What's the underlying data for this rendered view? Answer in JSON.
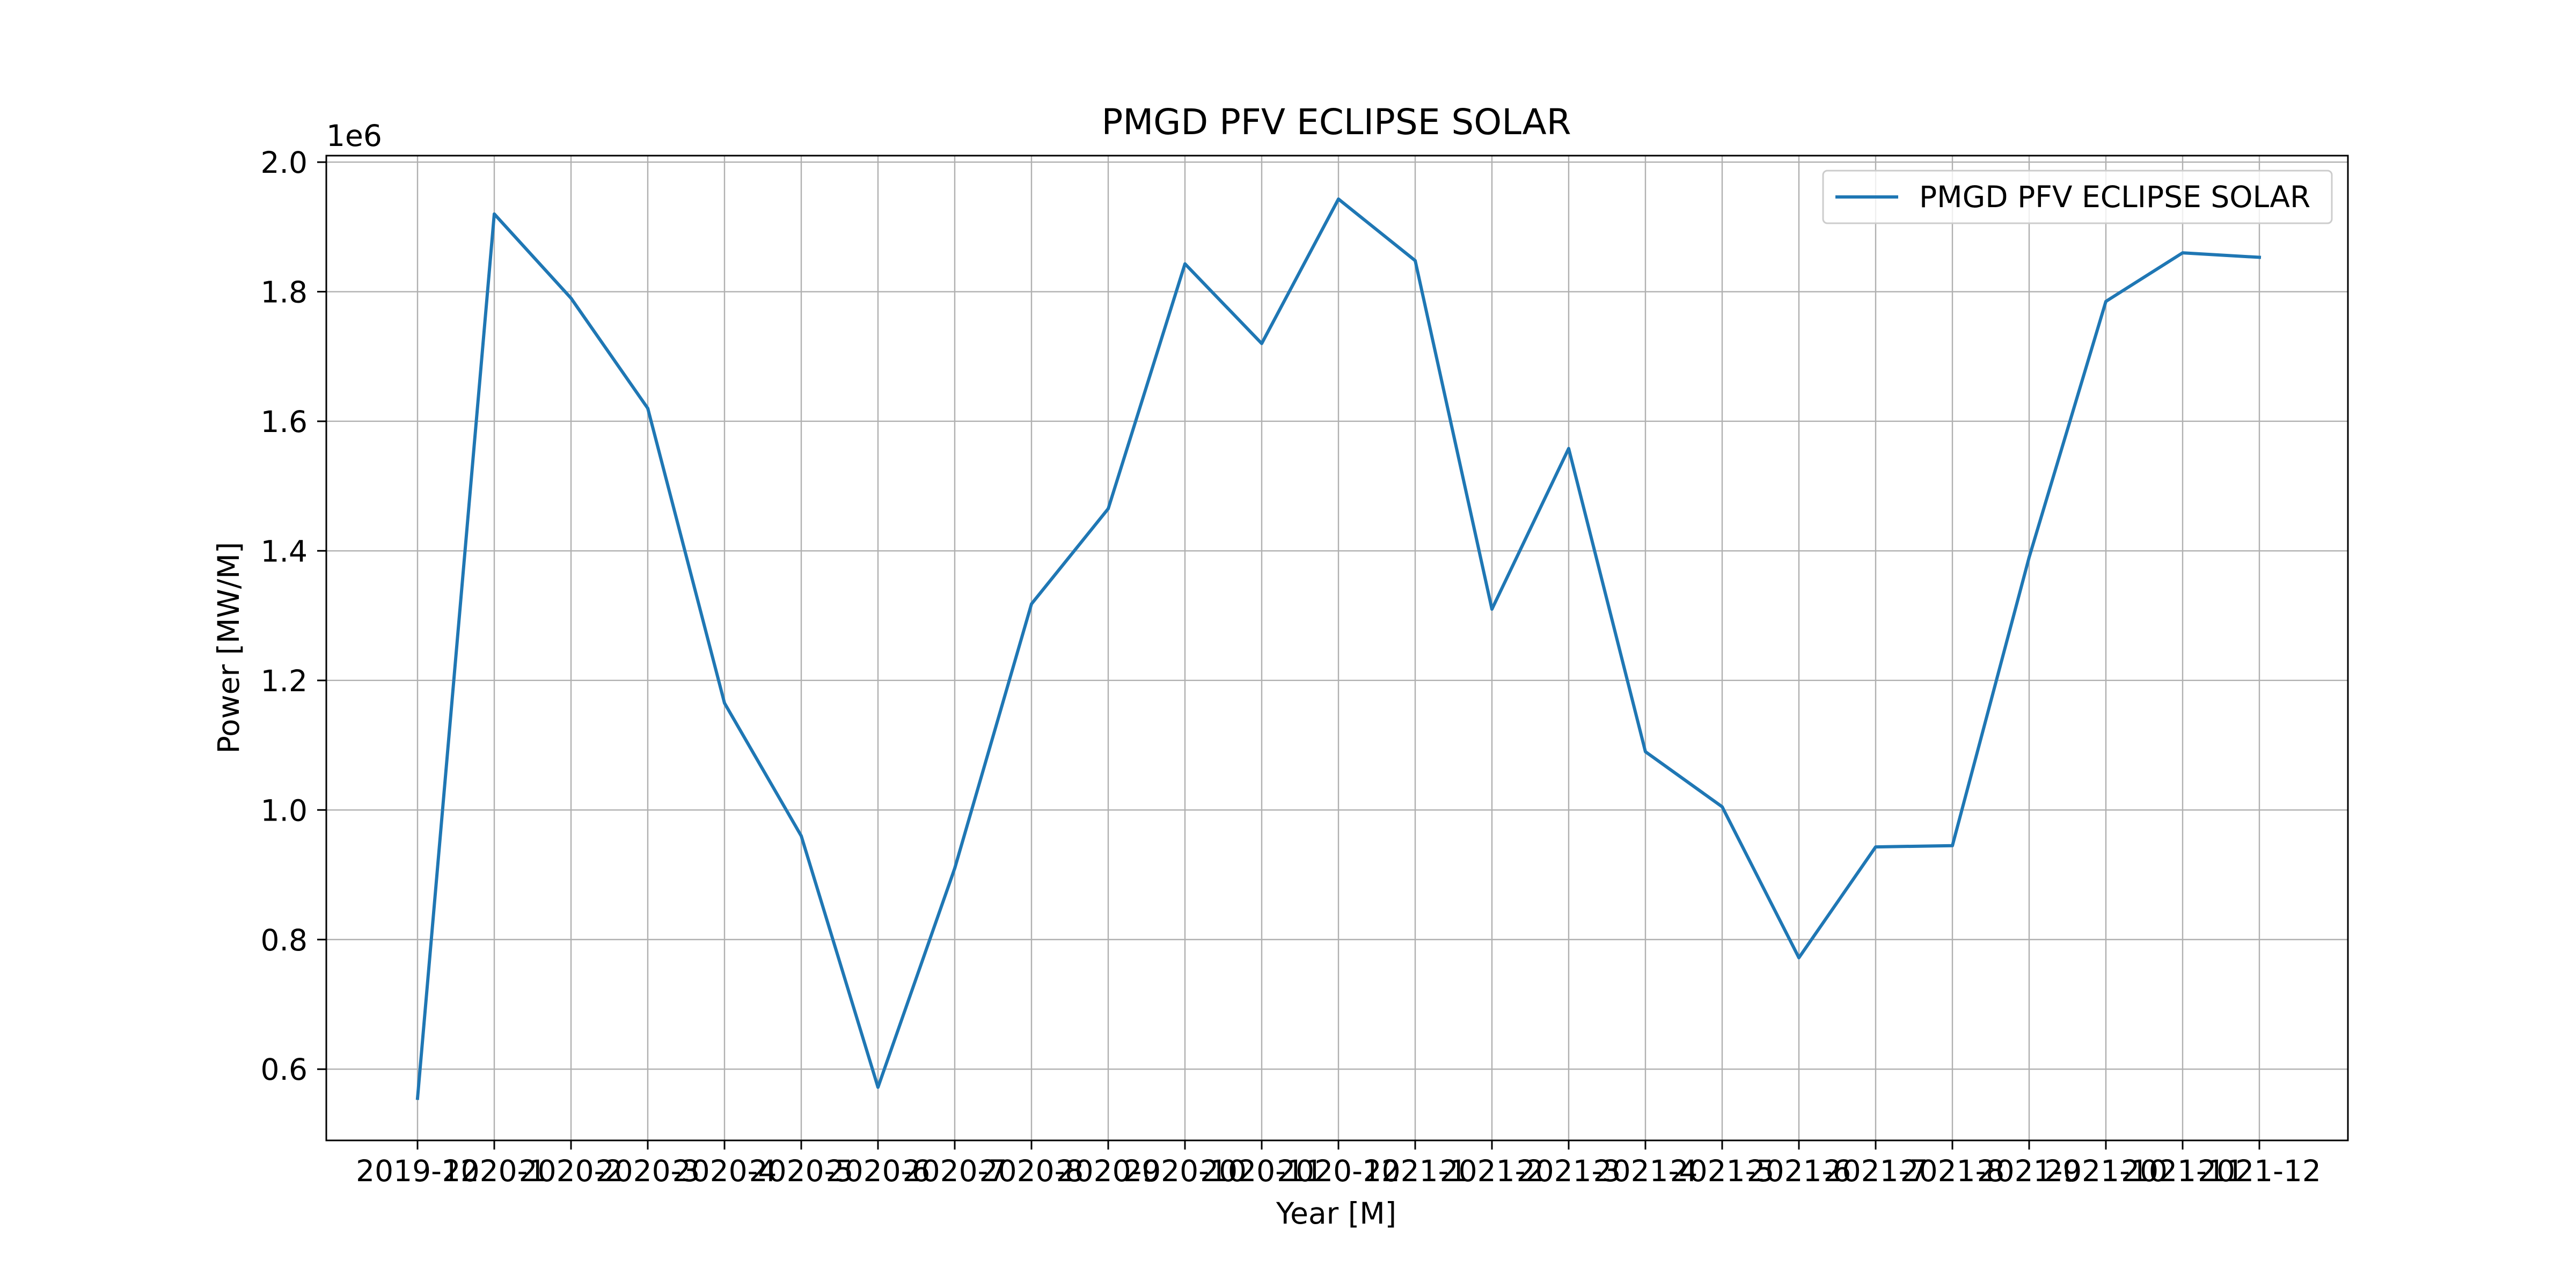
{
  "chart_data": {
    "type": "line",
    "title": "PMGD PFV ECLIPSE SOLAR",
    "xlabel": "Year [M]",
    "ylabel": "Power [MW/M]",
    "y_offset_label": "1e6",
    "y_scale": 1000000,
    "categories": [
      "2019-12",
      "2020-1",
      "2020-2",
      "2020-3",
      "2020-4",
      "2020-5",
      "2020-6",
      "2020-7",
      "2020-8",
      "2020-9",
      "2020-10",
      "2020-11",
      "2020-12",
      "2021-1",
      "2021-2",
      "2021-3",
      "2021-4",
      "2021-5",
      "2021-6",
      "2021-7",
      "2021-8",
      "2021-9",
      "2021-10",
      "2021-11",
      "2021-12"
    ],
    "ylim": [
      0.49,
      2.01
    ],
    "yticks": [
      0.6,
      0.8,
      1.0,
      1.2,
      1.4,
      1.6,
      1.8,
      2.0
    ],
    "ytick_labels": [
      "0.6",
      "0.8",
      "1.0",
      "1.2",
      "1.4",
      "1.6",
      "1.8",
      "2.0"
    ],
    "grid": true,
    "legend_position": "top-right",
    "series": [
      {
        "name": "PMGD PFV ECLIPSE SOLAR",
        "color": "#1f77b4",
        "values": [
          0.555,
          1.92,
          1.79,
          1.62,
          1.165,
          0.96,
          0.572,
          0.91,
          1.318,
          1.465,
          1.843,
          1.72,
          1.943,
          1.848,
          1.31,
          1.558,
          1.09,
          1.005,
          0.772,
          0.943,
          0.945,
          1.39,
          1.785,
          1.86,
          1.853
        ]
      }
    ]
  }
}
